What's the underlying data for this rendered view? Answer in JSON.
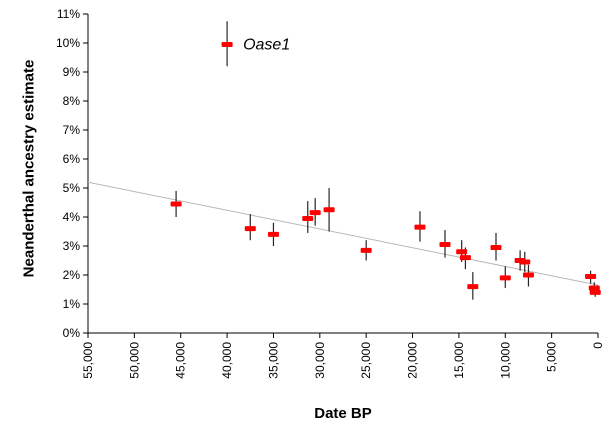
{
  "chart_data": {
    "type": "scatter",
    "title": "",
    "xlabel": "Date BP",
    "ylabel": "Neanderthal ancestry estimate",
    "xlim": [
      55000,
      0
    ],
    "ylim": [
      0,
      11
    ],
    "x_axis_reversed": true,
    "grid": false,
    "x_ticks": [
      55000,
      50000,
      45000,
      40000,
      35000,
      30000,
      25000,
      20000,
      15000,
      10000,
      5000,
      0
    ],
    "x_tick_labels": [
      "55,000",
      "50,000",
      "45,000",
      "40,000",
      "35,000",
      "30,000",
      "25,000",
      "20,000",
      "15,000",
      "10,000",
      "5,000",
      "0"
    ],
    "y_ticks": [
      0,
      1,
      2,
      3,
      4,
      5,
      6,
      7,
      8,
      9,
      10,
      11
    ],
    "y_tick_labels": [
      "0%",
      "1%",
      "2%",
      "3%",
      "4%",
      "5%",
      "6%",
      "7%",
      "8%",
      "9%",
      "10%",
      "11%"
    ],
    "marker_color": "#ff0000",
    "errorbar_color": "#262626",
    "axis_color": "#000000",
    "trend_line": {
      "x": [
        55000,
        0
      ],
      "y": [
        5.2,
        1.65
      ],
      "color": "#b8b8b8"
    },
    "annotation": {
      "text": "Oase1",
      "x": 40000,
      "y": 9.95
    },
    "points": [
      {
        "x": 45500,
        "y": 4.45,
        "lo": 4.0,
        "hi": 4.9
      },
      {
        "x": 40000,
        "y": 9.95,
        "lo": 9.2,
        "hi": 10.75
      },
      {
        "x": 37500,
        "y": 3.6,
        "lo": 3.2,
        "hi": 4.1
      },
      {
        "x": 35000,
        "y": 3.4,
        "lo": 3.0,
        "hi": 3.8
      },
      {
        "x": 31300,
        "y": 3.95,
        "lo": 3.45,
        "hi": 4.55
      },
      {
        "x": 30500,
        "y": 4.15,
        "lo": 3.7,
        "hi": 4.65
      },
      {
        "x": 29000,
        "y": 4.25,
        "lo": 3.5,
        "hi": 5.0
      },
      {
        "x": 25000,
        "y": 2.85,
        "lo": 2.5,
        "hi": 3.2
      },
      {
        "x": 19200,
        "y": 3.65,
        "lo": 3.15,
        "hi": 4.2
      },
      {
        "x": 16500,
        "y": 3.05,
        "lo": 2.6,
        "hi": 3.55
      },
      {
        "x": 14700,
        "y": 2.8,
        "lo": 2.45,
        "hi": 3.2
      },
      {
        "x": 14300,
        "y": 2.6,
        "lo": 2.2,
        "hi": 2.95
      },
      {
        "x": 13500,
        "y": 1.6,
        "lo": 1.15,
        "hi": 2.1
      },
      {
        "x": 11000,
        "y": 2.95,
        "lo": 2.5,
        "hi": 3.45
      },
      {
        "x": 10000,
        "y": 1.9,
        "lo": 1.55,
        "hi": 2.3
      },
      {
        "x": 8400,
        "y": 2.5,
        "lo": 2.15,
        "hi": 2.85
      },
      {
        "x": 7900,
        "y": 2.45,
        "lo": 2.1,
        "hi": 2.8
      },
      {
        "x": 7500,
        "y": 2.0,
        "lo": 1.6,
        "hi": 2.35
      },
      {
        "x": 800,
        "y": 1.95,
        "lo": 1.7,
        "hi": 2.15
      },
      {
        "x": 400,
        "y": 1.55,
        "lo": 1.35,
        "hi": 1.75
      },
      {
        "x": 300,
        "y": 1.4,
        "lo": 1.25,
        "hi": 1.6
      }
    ]
  }
}
